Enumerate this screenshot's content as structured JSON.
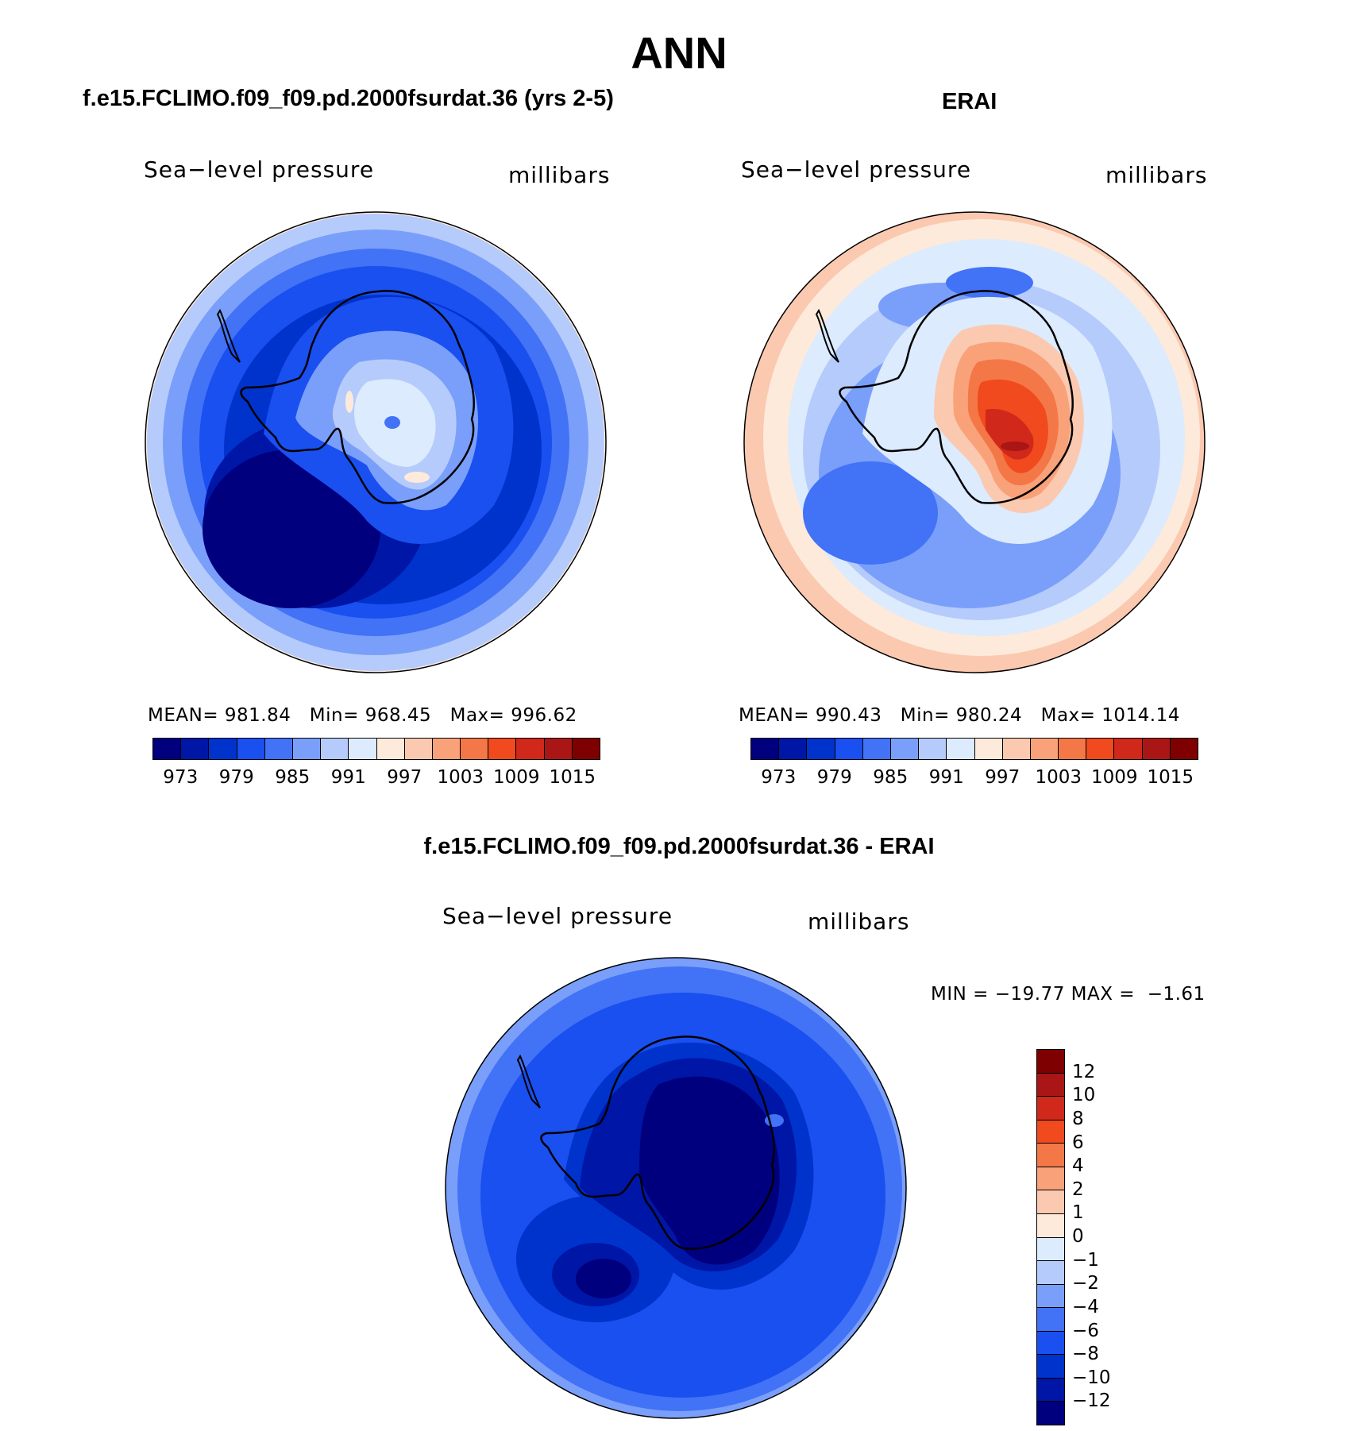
{
  "main_title": "ANN",
  "panels": {
    "model": {
      "case_title": "f.e15.FCLIMO.f09_f09.pd.2000fsurdat.36 (yrs 2-5)",
      "var_name": "Sea−level pressure",
      "units": "millibars",
      "stats": "MEAN= 981.84   Min= 968.45   Max= 996.62"
    },
    "obs": {
      "case_title": "ERAI",
      "var_name": "Sea−level pressure",
      "units": "millibars",
      "stats": "MEAN= 990.43   Min= 980.24   Max= 1014.14"
    },
    "diff": {
      "case_title": "f.e15.FCLIMO.f09_f09.pd.2000fsurdat.36 - ERAI",
      "var_name": "Sea−level pressure",
      "units": "millibars",
      "stats": "MIN = −19.77 MAX =  −1.61"
    }
  },
  "abs_colorbar": {
    "tick_labels": [
      "973",
      "979",
      "985",
      "991",
      "997",
      "1003",
      "1009",
      "1015"
    ],
    "colors": [
      "#00007f",
      "#0016a6",
      "#0033cc",
      "#1a4ff0",
      "#4272f5",
      "#7a9ffa",
      "#b5cbfb",
      "#dcebfd",
      "#fdeadb",
      "#fbc9b0",
      "#f9a27a",
      "#f47748",
      "#f04a1e",
      "#d0281a",
      "#aa1515",
      "#7f0000"
    ]
  },
  "diff_colorbar": {
    "tick_labels": [
      "12",
      "10",
      "8",
      "6",
      "4",
      "2",
      "1",
      "0",
      "−1",
      "−2",
      "−4",
      "−6",
      "−8",
      "−10",
      "−12"
    ],
    "colors": [
      "#7f0000",
      "#aa1515",
      "#d0281a",
      "#f04a1e",
      "#f47748",
      "#f9a27a",
      "#fbc9b0",
      "#fdeadb",
      "#dcebfd",
      "#b5cbfb",
      "#7a9ffa",
      "#4272f5",
      "#1a4ff0",
      "#0033cc",
      "#0016a6",
      "#00007f"
    ]
  }
}
